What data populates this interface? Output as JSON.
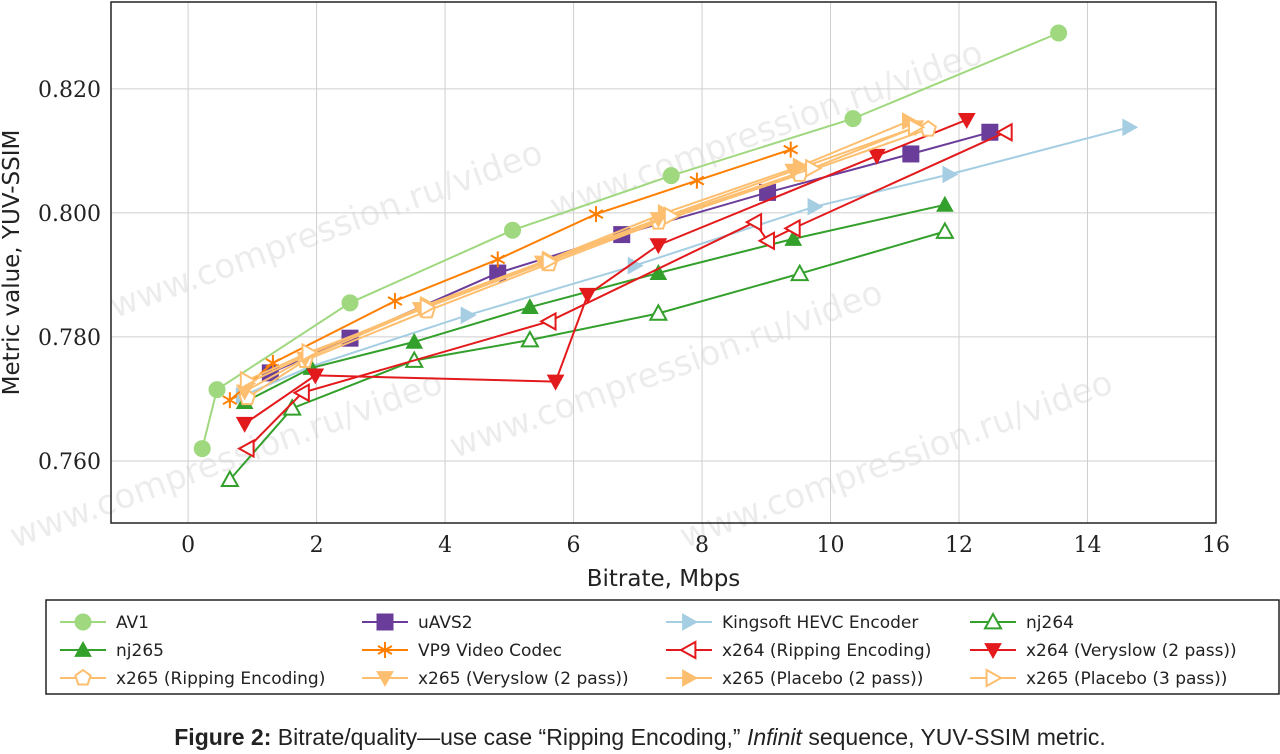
{
  "watermark": "www.compression.ru/video",
  "caption": {
    "label": "Figure 2:",
    "text_before": " Bitrate/quality—use case “Ripping Encoding,” ",
    "italic": "Infinit",
    "text_after": " sequence, YUV-SSIM metric."
  },
  "chart_data": {
    "type": "line",
    "xlabel": "Bitrate, Mbps",
    "ylabel": "Metric value, YUV-SSIM",
    "xlim": [
      -1.2,
      16
    ],
    "ylim": [
      0.75,
      0.834
    ],
    "xticks": [
      "0",
      "2",
      "4",
      "6",
      "8",
      "10",
      "12",
      "14",
      "16"
    ],
    "xtick_values": [
      0,
      2,
      4,
      6,
      8,
      10,
      12,
      14,
      16
    ],
    "yticks": [
      "0.760",
      "0.780",
      "0.800",
      "0.820"
    ],
    "ytick_values": [
      0.76,
      0.78,
      0.8,
      0.82
    ],
    "grid": true,
    "legend_placement": "bottom",
    "series": [
      {
        "name": "AV1",
        "color": "#9fd87f",
        "marker": "circle",
        "points": [
          [
            0.22,
            0.762
          ],
          [
            0.45,
            0.7715
          ],
          [
            2.52,
            0.7855
          ],
          [
            5.05,
            0.7972
          ],
          [
            7.52,
            0.806
          ],
          [
            10.35,
            0.8152
          ],
          [
            13.55,
            0.829
          ]
        ]
      },
      {
        "name": "uAVS2",
        "color": "#6a3d9a",
        "marker": "square",
        "points": [
          [
            1.28,
            0.7742
          ],
          [
            2.52,
            0.7798
          ],
          [
            4.82,
            0.7903
          ],
          [
            6.75,
            0.7965
          ],
          [
            9.02,
            0.8033
          ],
          [
            11.25,
            0.8095
          ],
          [
            12.48,
            0.813
          ]
        ]
      },
      {
        "name": "Kingsoft HEVC Encoder",
        "color": "#a6cee3",
        "marker": "triangle-right",
        "points": [
          [
            0.85,
            0.7705
          ],
          [
            1.9,
            0.7752
          ],
          [
            4.35,
            0.7835
          ],
          [
            6.95,
            0.7915
          ],
          [
            9.75,
            0.801
          ],
          [
            11.85,
            0.8062
          ],
          [
            14.65,
            0.8138
          ]
        ]
      },
      {
        "name": "nj264",
        "color": "#33a02c",
        "marker": "triangle-up-open",
        "points": [
          [
            0.65,
            0.757
          ],
          [
            1.62,
            0.7685
          ],
          [
            3.52,
            0.7762
          ],
          [
            5.32,
            0.7795
          ],
          [
            7.32,
            0.7838
          ],
          [
            9.52,
            0.7902
          ],
          [
            11.78,
            0.797
          ]
        ]
      },
      {
        "name": "nj265",
        "color": "#33a02c",
        "marker": "triangle-up",
        "points": [
          [
            0.88,
            0.7695
          ],
          [
            1.92,
            0.775
          ],
          [
            3.52,
            0.7792
          ],
          [
            5.32,
            0.7848
          ],
          [
            7.32,
            0.7903
          ],
          [
            9.42,
            0.7958
          ],
          [
            11.78,
            0.8013
          ]
        ]
      },
      {
        "name": "VP9 Video Codec",
        "color": "#ff7f00",
        "marker": "asterisk",
        "points": [
          [
            0.65,
            0.7698
          ],
          [
            1.32,
            0.7758
          ],
          [
            3.22,
            0.7858
          ],
          [
            4.82,
            0.7925
          ],
          [
            6.35,
            0.7998
          ],
          [
            7.92,
            0.8052
          ],
          [
            9.38,
            0.8102
          ]
        ]
      },
      {
        "name": "x264 (Ripping Encoding)",
        "color": "#e31a1c",
        "marker": "triangle-left-open",
        "points": [
          [
            0.92,
            0.762
          ],
          [
            1.78,
            0.771
          ],
          [
            5.62,
            0.7825
          ],
          [
            8.82,
            0.7985
          ],
          [
            9.02,
            0.7955
          ],
          [
            9.42,
            0.7975
          ],
          [
            12.72,
            0.813
          ]
        ]
      },
      {
        "name": "x264 (Veryslow (2 pass))",
        "color": "#e31a1c",
        "marker": "triangle-down",
        "points": [
          [
            0.88,
            0.766
          ],
          [
            1.98,
            0.7738
          ],
          [
            5.72,
            0.7728
          ],
          [
            6.22,
            0.7868
          ],
          [
            7.32,
            0.7948
          ],
          [
            10.72,
            0.8092
          ],
          [
            12.12,
            0.815
          ]
        ]
      },
      {
        "name": "x265 (Ripping Encoding)",
        "color": "#fdbf6f",
        "marker": "pentagon-open",
        "points": [
          [
            0.92,
            0.7702
          ],
          [
            1.82,
            0.7762
          ],
          [
            3.72,
            0.7842
          ],
          [
            5.62,
            0.7918
          ],
          [
            7.32,
            0.7985
          ],
          [
            9.52,
            0.8062
          ],
          [
            11.52,
            0.8135
          ]
        ]
      },
      {
        "name": "x265 (Veryslow (2 pass))",
        "color": "#fdbf6f",
        "marker": "triangle-down",
        "points": [
          [
            0.88,
            0.7712
          ],
          [
            1.82,
            0.7765
          ],
          [
            3.62,
            0.7845
          ],
          [
            5.52,
            0.792
          ],
          [
            7.32,
            0.799
          ],
          [
            9.42,
            0.8068
          ],
          [
            11.32,
            0.8138
          ]
        ]
      },
      {
        "name": "x265 (Placebo (2 pass))",
        "color": "#fdbf6f",
        "marker": "triangle-right",
        "points": [
          [
            0.92,
            0.7725
          ],
          [
            1.88,
            0.7772
          ],
          [
            3.72,
            0.7852
          ],
          [
            5.62,
            0.7925
          ],
          [
            7.42,
            0.8
          ],
          [
            9.52,
            0.8075
          ],
          [
            11.22,
            0.8148
          ]
        ]
      },
      {
        "name": "x265 (Placebo (3 pass))",
        "color": "#fdbf6f",
        "marker": "triangle-right-open",
        "points": [
          [
            0.92,
            0.773
          ],
          [
            1.88,
            0.7775
          ],
          [
            3.72,
            0.7848
          ],
          [
            5.62,
            0.7922
          ],
          [
            7.52,
            0.7995
          ],
          [
            9.72,
            0.8072
          ],
          [
            11.32,
            0.8138
          ]
        ]
      }
    ]
  }
}
